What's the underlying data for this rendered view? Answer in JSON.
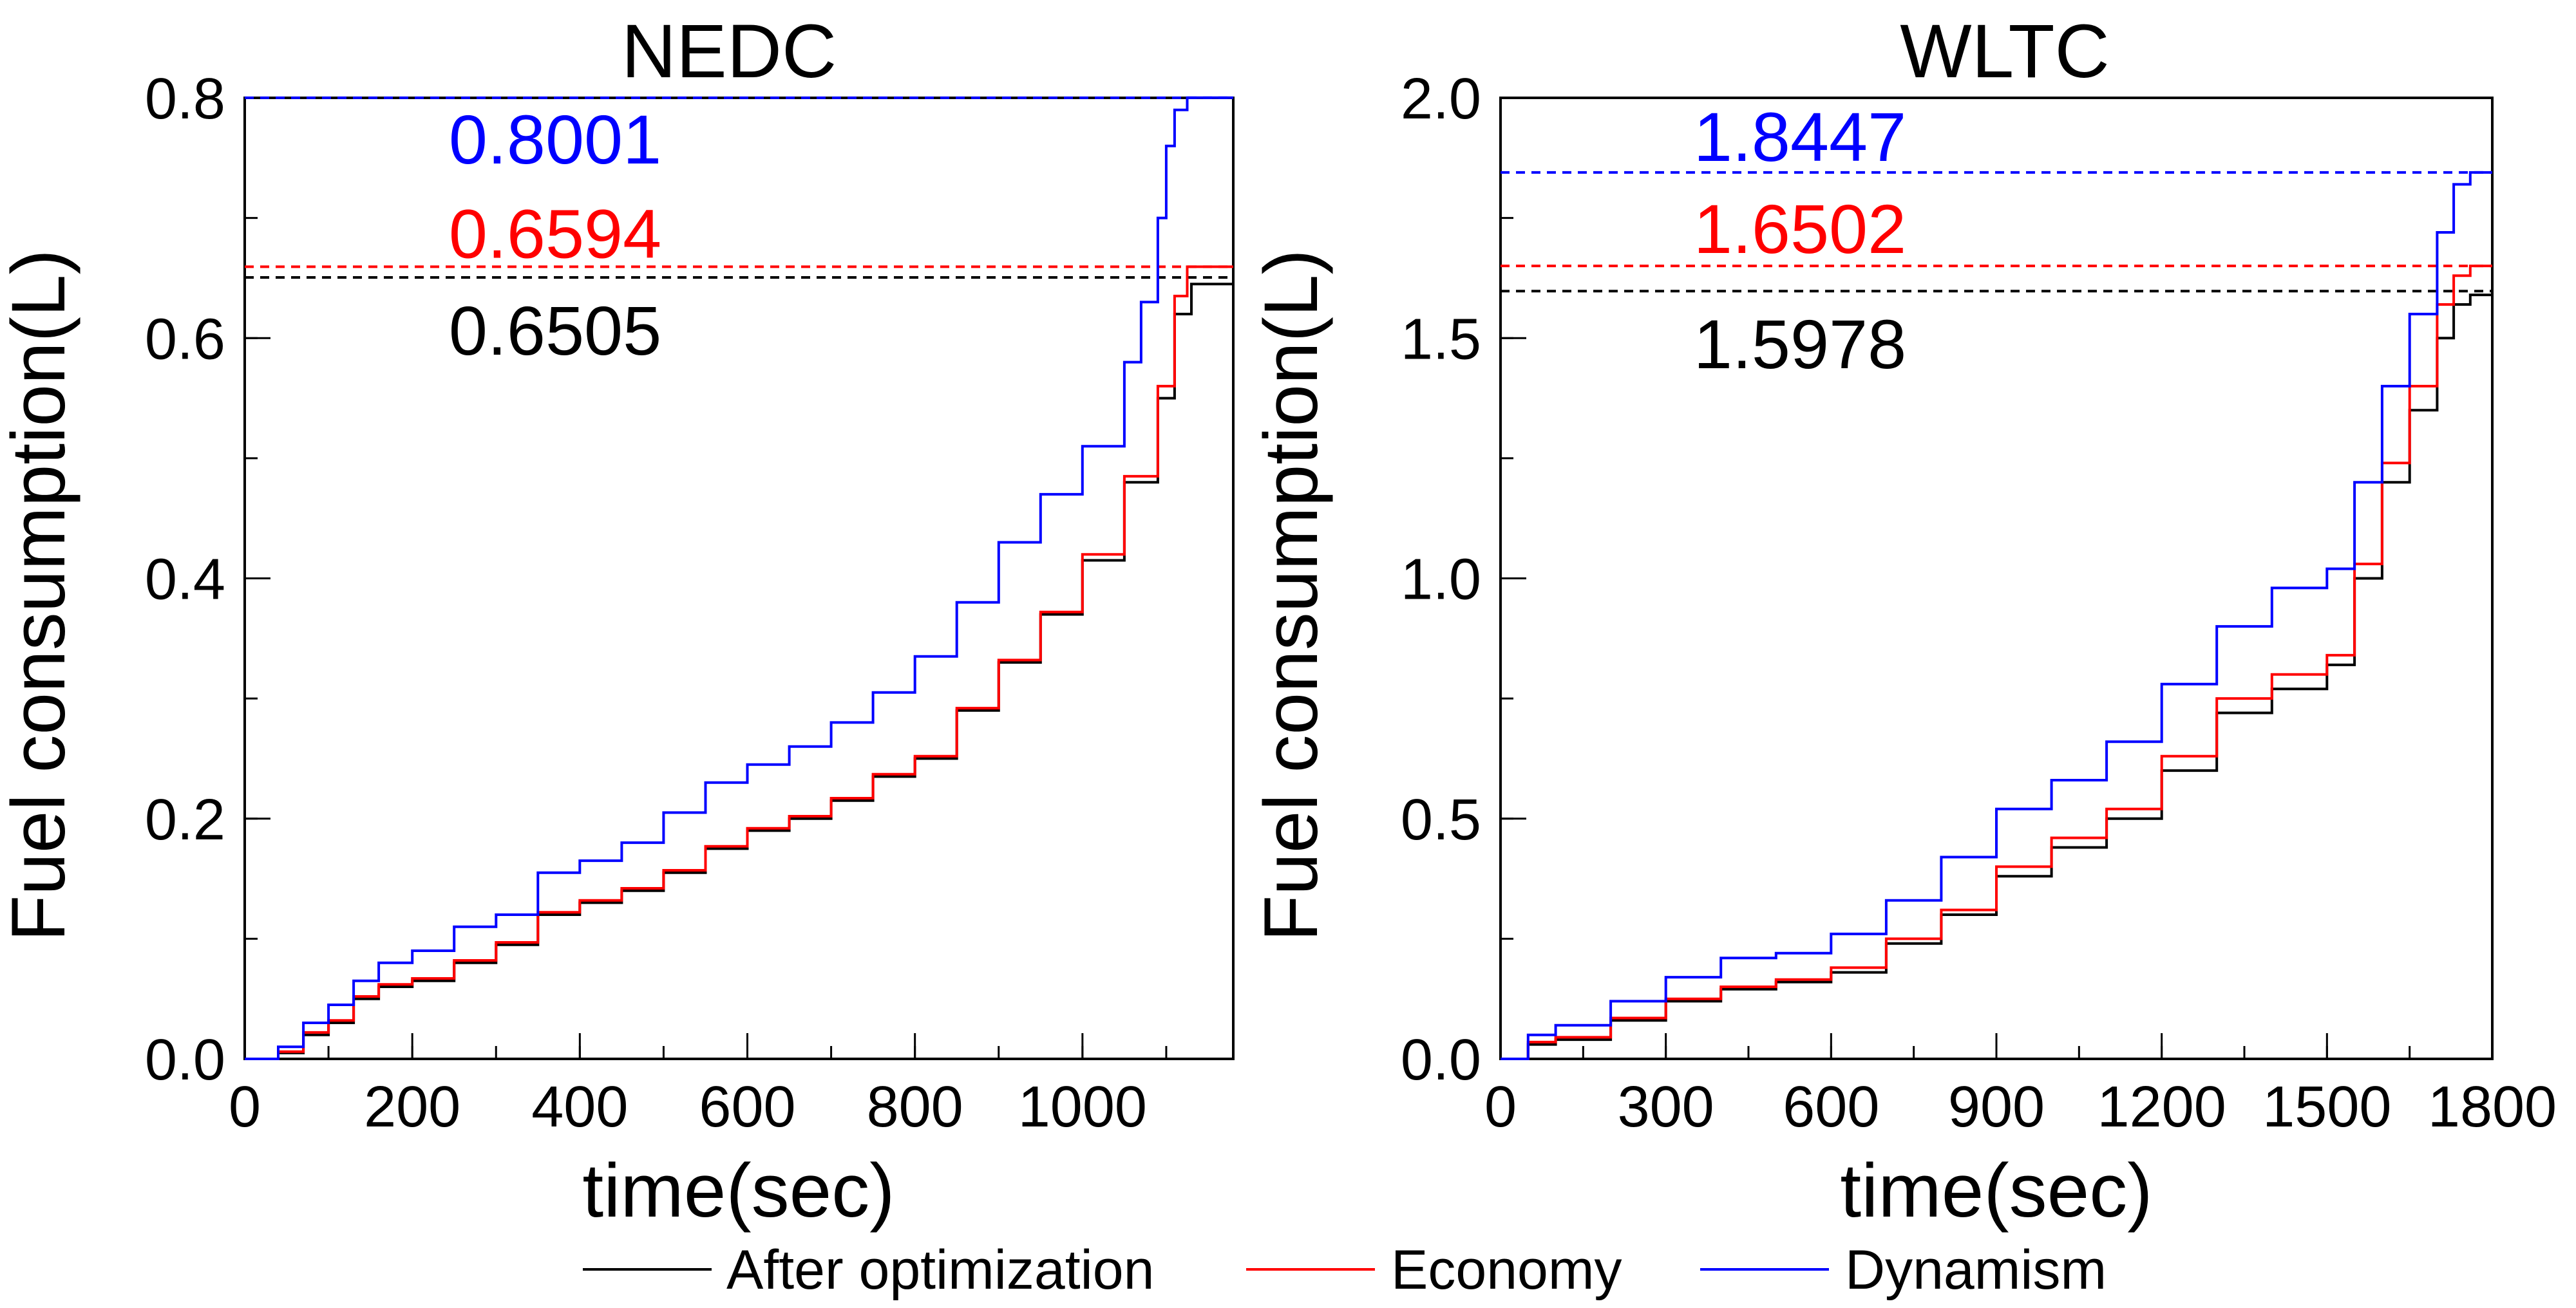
{
  "chart_data": [
    {
      "type": "line",
      "title": "NEDC",
      "xlabel": "time(sec)",
      "ylabel": "Fuel consumption(L)",
      "xlim": [
        0,
        1180
      ],
      "ylim": [
        0,
        0.8
      ],
      "xticks": [
        0,
        200,
        400,
        600,
        800,
        1000
      ],
      "xtick_labels": [
        "0",
        "200",
        "400",
        "600",
        "800",
        "1000"
      ],
      "yticks": [
        0,
        0.2,
        0.4,
        0.6,
        0.8
      ],
      "ytick_labels": [
        "0.0",
        "0.2",
        "0.4",
        "0.6",
        "0.8"
      ],
      "x_minor_step": 100,
      "y_minor_step": 0.1,
      "series": [
        {
          "name": "After optimization",
          "color": "#000000",
          "x": [
            0,
            40,
            70,
            100,
            130,
            160,
            200,
            250,
            300,
            350,
            400,
            450,
            500,
            550,
            600,
            650,
            700,
            750,
            800,
            850,
            900,
            950,
            1000,
            1050,
            1090,
            1110,
            1130,
            1180
          ],
          "y": [
            0.0,
            0.005,
            0.02,
            0.03,
            0.05,
            0.06,
            0.065,
            0.08,
            0.095,
            0.12,
            0.13,
            0.14,
            0.155,
            0.175,
            0.19,
            0.2,
            0.215,
            0.235,
            0.25,
            0.29,
            0.33,
            0.37,
            0.415,
            0.48,
            0.55,
            0.62,
            0.645,
            0.6505
          ]
        },
        {
          "name": "Economy",
          "color": "#ff0000",
          "x": [
            0,
            40,
            70,
            100,
            130,
            160,
            200,
            250,
            300,
            350,
            400,
            450,
            500,
            550,
            600,
            650,
            700,
            750,
            800,
            850,
            900,
            950,
            1000,
            1050,
            1090,
            1110,
            1125,
            1180
          ],
          "y": [
            0.0,
            0.006,
            0.022,
            0.032,
            0.052,
            0.062,
            0.067,
            0.082,
            0.097,
            0.122,
            0.132,
            0.142,
            0.157,
            0.177,
            0.192,
            0.202,
            0.217,
            0.237,
            0.252,
            0.292,
            0.332,
            0.372,
            0.42,
            0.485,
            0.56,
            0.635,
            0.6594,
            0.6594
          ]
        },
        {
          "name": "Dynamism",
          "color": "#0000ff",
          "x": [
            0,
            40,
            70,
            100,
            130,
            160,
            200,
            250,
            300,
            350,
            400,
            450,
            500,
            550,
            600,
            650,
            700,
            750,
            800,
            850,
            900,
            950,
            1000,
            1050,
            1070,
            1090,
            1100,
            1110,
            1125,
            1180
          ],
          "y": [
            0.0,
            0.01,
            0.03,
            0.045,
            0.065,
            0.08,
            0.09,
            0.11,
            0.12,
            0.155,
            0.165,
            0.18,
            0.205,
            0.23,
            0.245,
            0.26,
            0.28,
            0.305,
            0.335,
            0.38,
            0.43,
            0.47,
            0.51,
            0.58,
            0.63,
            0.7,
            0.76,
            0.79,
            0.8001,
            0.8001
          ]
        }
      ],
      "reference_lines": [
        {
          "value": 0.8001,
          "label": "0.8001",
          "color": "#0000ff"
        },
        {
          "value": 0.6594,
          "label": "0.6594",
          "color": "#ff0000"
        },
        {
          "value": 0.6505,
          "label": "0.6505",
          "color": "#000000"
        }
      ]
    },
    {
      "type": "line",
      "title": "WLTC",
      "xlabel": "time(sec)",
      "ylabel": "Fuel consumption(L)",
      "xlim": [
        0,
        1800
      ],
      "ylim": [
        0,
        2.0
      ],
      "xticks": [
        0,
        300,
        600,
        900,
        1200,
        1500,
        1800
      ],
      "xtick_labels": [
        "0",
        "300",
        "600",
        "900",
        "1200",
        "1500",
        "1800"
      ],
      "yticks": [
        0,
        0.5,
        1.0,
        1.5,
        2.0
      ],
      "ytick_labels": [
        "0.0",
        "0.5",
        "1.0",
        "1.5",
        "2.0"
      ],
      "x_minor_step": 150,
      "y_minor_step": 0.25,
      "series": [
        {
          "name": "After optimization",
          "color": "#000000",
          "x": [
            0,
            50,
            100,
            200,
            300,
            400,
            500,
            600,
            700,
            800,
            900,
            1000,
            1100,
            1200,
            1300,
            1400,
            1500,
            1550,
            1600,
            1650,
            1700,
            1730,
            1760,
            1800
          ],
          "y": [
            0.0,
            0.03,
            0.04,
            0.08,
            0.12,
            0.145,
            0.16,
            0.18,
            0.24,
            0.3,
            0.38,
            0.44,
            0.5,
            0.6,
            0.72,
            0.77,
            0.82,
            1.0,
            1.2,
            1.35,
            1.5,
            1.57,
            1.59,
            1.5978
          ]
        },
        {
          "name": "Economy",
          "color": "#ff0000",
          "x": [
            0,
            50,
            100,
            200,
            300,
            400,
            500,
            600,
            700,
            800,
            900,
            1000,
            1100,
            1200,
            1300,
            1400,
            1500,
            1550,
            1600,
            1650,
            1700,
            1730,
            1760,
            1800
          ],
          "y": [
            0.0,
            0.035,
            0.045,
            0.085,
            0.125,
            0.15,
            0.165,
            0.19,
            0.25,
            0.31,
            0.4,
            0.46,
            0.52,
            0.63,
            0.75,
            0.8,
            0.84,
            1.03,
            1.24,
            1.4,
            1.57,
            1.63,
            1.6502,
            1.6502
          ]
        },
        {
          "name": "Dynamism",
          "color": "#0000ff",
          "x": [
            0,
            50,
            100,
            200,
            300,
            400,
            500,
            600,
            700,
            800,
            900,
            1000,
            1100,
            1200,
            1300,
            1400,
            1500,
            1550,
            1600,
            1650,
            1700,
            1730,
            1760,
            1800
          ],
          "y": [
            0.0,
            0.05,
            0.07,
            0.12,
            0.17,
            0.21,
            0.22,
            0.26,
            0.33,
            0.42,
            0.52,
            0.58,
            0.66,
            0.78,
            0.9,
            0.98,
            1.02,
            1.2,
            1.4,
            1.55,
            1.72,
            1.82,
            1.8447,
            1.8447
          ]
        }
      ],
      "reference_lines": [
        {
          "value": 1.8447,
          "label": "1.8447",
          "color": "#0000ff"
        },
        {
          "value": 1.6502,
          "label": "1.6502",
          "color": "#ff0000"
        },
        {
          "value": 1.5978,
          "label": "1.5978",
          "color": "#000000"
        }
      ]
    }
  ],
  "legend": {
    "position": "bottom-center",
    "entries": [
      {
        "label": "After optimization",
        "color": "#000000"
      },
      {
        "label": "Economy",
        "color": "#ff0000"
      },
      {
        "label": "Dynamism",
        "color": "#0000ff"
      }
    ]
  }
}
